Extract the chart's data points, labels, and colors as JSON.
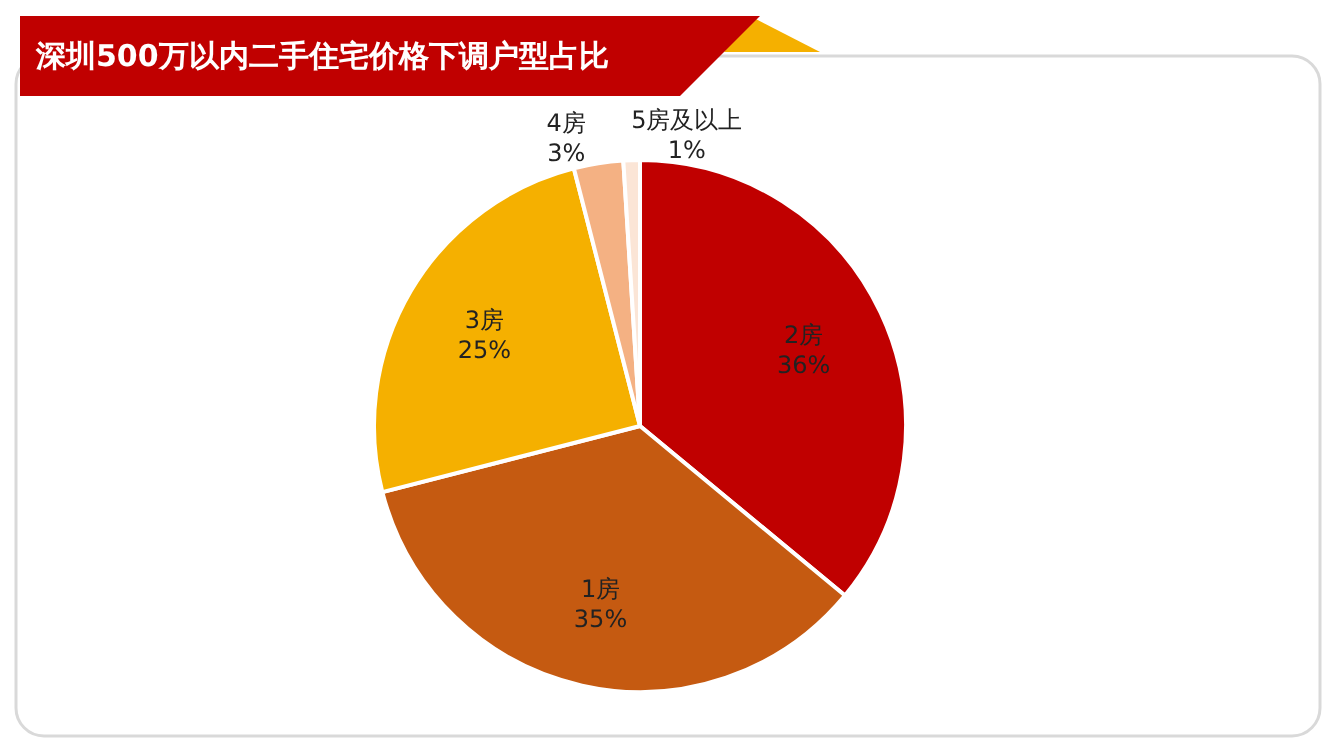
{
  "chart_data": {
    "type": "pie",
    "title": "深圳500万以内二手住宅价格下调户型占比",
    "categories": [
      "2房",
      "1房",
      "3房",
      "4房",
      "5房及以上"
    ],
    "values": [
      36,
      35,
      25,
      3,
      1
    ],
    "colors": [
      "#c00000",
      "#c55a11",
      "#f5b000",
      "#f4b183",
      "#fbe5d6"
    ],
    "value_labels": [
      "36%",
      "35%",
      "25%",
      "3%",
      "1%"
    ]
  }
}
